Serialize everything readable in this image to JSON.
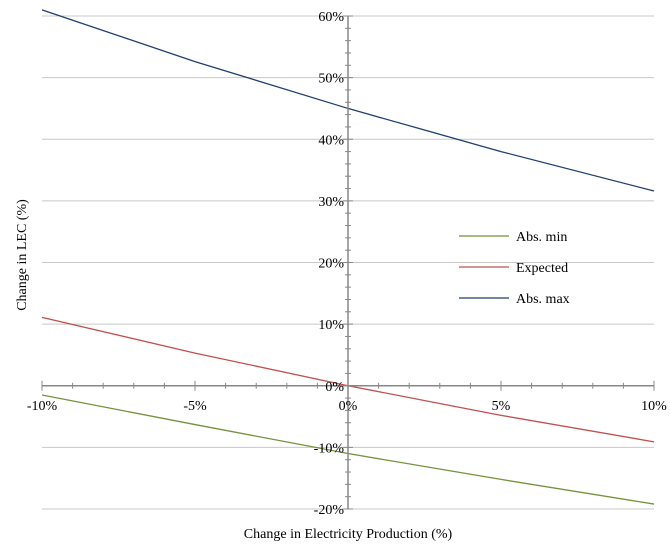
{
  "chart_data": {
    "type": "line",
    "xlabel": "Change in Electricity Production (%)",
    "ylabel": "Change in LEC (%)",
    "xlim": [
      -10,
      10
    ],
    "ylim": [
      -20,
      60
    ],
    "x_ticks": [
      -10,
      -5,
      0,
      5,
      10
    ],
    "y_ticks": [
      -20,
      -10,
      0,
      10,
      20,
      30,
      40,
      50,
      60
    ],
    "x_tick_labels": [
      "-10%",
      "-5%",
      "0%",
      "5%",
      "10%"
    ],
    "y_tick_labels": [
      "-20%",
      "-10%",
      "0%",
      "10%",
      "20%",
      "30%",
      "40%",
      "50%",
      "60%"
    ],
    "grid": "horizontal",
    "legend": "right",
    "series": [
      {
        "name": "Abs. min",
        "color": "#76923c",
        "x": [
          -10,
          -5,
          0,
          5,
          10
        ],
        "y": [
          -1.5,
          -6.3,
          -11.0,
          -15.2,
          -19.2
        ]
      },
      {
        "name": "Expected",
        "color": "#c0504d",
        "x": [
          -10,
          -5,
          0,
          5,
          10
        ],
        "y": [
          11.1,
          5.3,
          0.0,
          -4.8,
          -9.1
        ]
      },
      {
        "name": "Abs. max",
        "color": "#1f3f6e",
        "x": [
          -10,
          -5,
          0,
          5,
          10
        ],
        "y": [
          61.0,
          52.6,
          45.0,
          38.0,
          31.6
        ]
      }
    ]
  }
}
